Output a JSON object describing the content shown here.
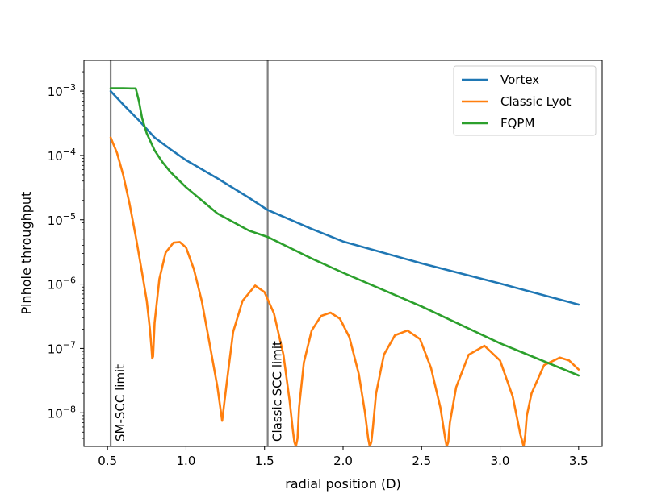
{
  "chart_data": {
    "type": "line",
    "title": "",
    "xlabel": "radial position (D)",
    "ylabel": "Pinhole throughput",
    "xscale": "linear",
    "yscale": "log",
    "xlim": [
      0.35,
      3.65
    ],
    "ylim": [
      3e-09,
      0.003
    ],
    "grid": false,
    "legend_position": "top-right",
    "x_ticks": [
      0.5,
      1.0,
      1.5,
      2.0,
      2.5,
      3.0,
      3.5
    ],
    "x_tick_labels": [
      "0.5",
      "1.0",
      "1.5",
      "2.0",
      "2.5",
      "3.0",
      "3.5"
    ],
    "y_tick_exponents": [
      -8,
      -7,
      -6,
      -5,
      -4,
      -3
    ],
    "y_tick_base": "10",
    "vertical_lines": [
      {
        "x": 0.52,
        "label": "SM-SCC limit",
        "color": "#808080"
      },
      {
        "x": 1.52,
        "label": "Classic SCC limit",
        "color": "#808080"
      }
    ],
    "series": [
      {
        "name": "Vortex",
        "color": "#1f77b4",
        "x": [
          0.52,
          0.6,
          0.7,
          0.8,
          0.9,
          1.0,
          1.2,
          1.4,
          1.52,
          1.8,
          2.0,
          2.5,
          3.0,
          3.5
        ],
        "y": [
          0.001,
          0.00062,
          0.00035,
          0.00019,
          0.000125,
          8.45e-05,
          4.4e-05,
          2.2e-05,
          1.42e-05,
          7.2e-06,
          4.6e-06,
          2.1e-06,
          1.02e-06,
          4.8e-07
        ]
      },
      {
        "name": "Classic Lyot",
        "color": "#ff7f0e",
        "x": [
          0.52,
          0.56,
          0.6,
          0.64,
          0.68,
          0.72,
          0.75,
          0.77,
          0.78,
          0.785,
          0.79,
          0.8,
          0.83,
          0.87,
          0.92,
          0.96,
          1.0,
          1.05,
          1.1,
          1.15,
          1.2,
          1.23,
          1.26,
          1.3,
          1.36,
          1.44,
          1.5,
          1.56,
          1.62,
          1.66,
          1.68,
          1.69,
          1.7,
          1.71,
          1.72,
          1.75,
          1.8,
          1.86,
          1.92,
          1.98,
          2.04,
          2.1,
          2.14,
          2.16,
          2.17,
          2.18,
          2.19,
          2.21,
          2.26,
          2.33,
          2.41,
          2.49,
          2.56,
          2.62,
          2.65,
          2.66,
          2.67,
          2.68,
          2.72,
          2.8,
          2.9,
          3.0,
          3.08,
          3.13,
          3.15,
          3.16,
          3.17,
          3.2,
          3.28,
          3.38,
          3.44,
          3.5
        ],
        "y": [
          0.00019,
          0.00011,
          5e-05,
          1.8e-05,
          5.5e-06,
          1.5e-06,
          5.5e-07,
          2e-07,
          1e-07,
          7e-08,
          7.5e-08,
          2.5e-07,
          1.2e-06,
          3.1e-06,
          4.4e-06,
          4.5e-06,
          3.7e-06,
          1.7e-06,
          5.5e-07,
          1.2e-07,
          2.5e-08,
          7.5e-09,
          3e-08,
          1.8e-07,
          5.5e-07,
          9.5e-07,
          7.5e-07,
          3.5e-07,
          8e-08,
          1.5e-08,
          5.5e-09,
          3.5e-09,
          3e-09,
          4e-09,
          1.2e-08,
          6e-08,
          1.9e-07,
          3.2e-07,
          3.6e-07,
          2.9e-07,
          1.5e-07,
          4e-08,
          1e-08,
          4e-09,
          3e-09,
          3.5e-09,
          6e-09,
          2e-08,
          8e-08,
          1.6e-07,
          1.9e-07,
          1.4e-07,
          5e-08,
          1.2e-08,
          4e-09,
          3e-09,
          3.5e-09,
          7e-09,
          2.5e-08,
          8e-08,
          1.1e-07,
          6.5e-08,
          1.8e-08,
          4.5e-09,
          3e-09,
          4.5e-09,
          9e-09,
          2e-08,
          5.5e-08,
          7.2e-08,
          6.5e-08,
          4.7e-08
        ]
      },
      {
        "name": "FQPM",
        "color": "#2ca02c",
        "x": [
          0.52,
          0.6,
          0.65,
          0.68,
          0.7,
          0.72,
          0.75,
          0.8,
          0.85,
          0.9,
          1.0,
          1.2,
          1.4,
          1.52,
          1.8,
          2.0,
          2.5,
          3.0,
          3.5
        ],
        "y": [
          0.00111,
          0.00111,
          0.0011,
          0.0011,
          0.0007,
          0.00038,
          0.00022,
          0.00012,
          7.85e-05,
          5.55e-05,
          3.2e-05,
          1.25e-05,
          6.8e-06,
          5.4e-06,
          2.5e-06,
          1.5e-06,
          4.5e-07,
          1.2e-07,
          3.8e-08
        ]
      }
    ]
  }
}
